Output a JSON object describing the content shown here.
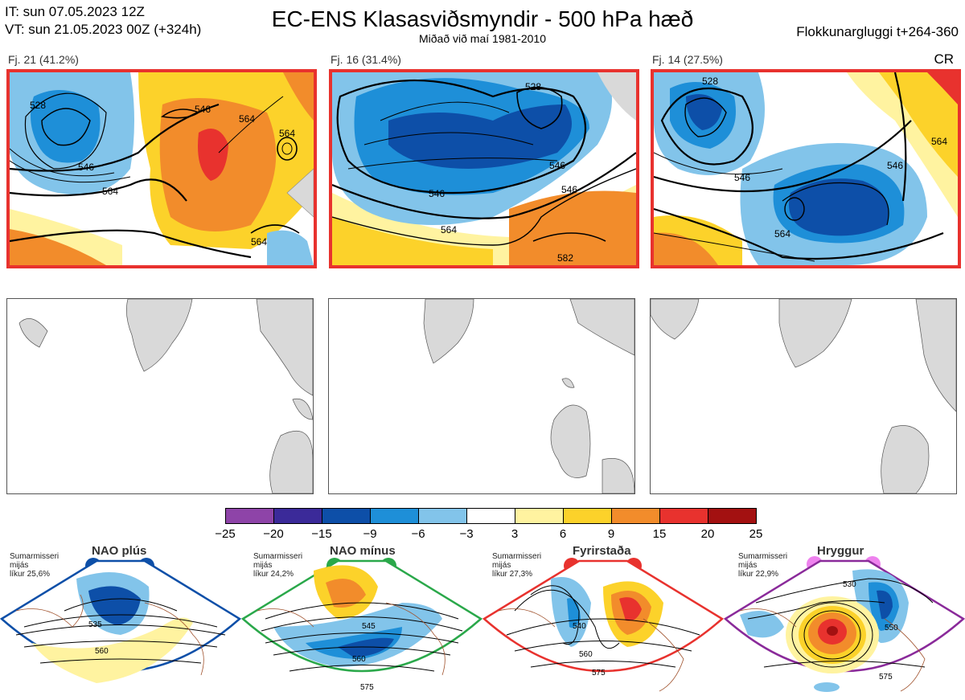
{
  "header": {
    "it_line": "IT: sun 07.05.2023 12Z",
    "vt_line": "VT: sun 21.05.2023 00Z  (+324h)",
    "title": "EC-ENS Klasasviðsmyndir - 500 hPa hæð",
    "subtitle": "Miðað við maí 1981-2010",
    "window": "Flokkunargluggi t+264-360",
    "corner_tag": "CR"
  },
  "clusters": [
    {
      "label": "Fj. 21 (41.2%)",
      "contour_labels": [
        "528",
        "546",
        "564",
        "546",
        "564",
        "564",
        "564"
      ]
    },
    {
      "label": "Fj. 16 (31.4%)",
      "contour_labels": [
        "528",
        "546",
        "546",
        "564",
        "582",
        "546"
      ]
    },
    {
      "label": "Fj. 14 (27.5%)",
      "contour_labels": [
        "528",
        "546",
        "564",
        "564",
        "546"
      ]
    }
  ],
  "colorbar": {
    "ticks": [
      "−25",
      "−20",
      "−15",
      "−9",
      "−6",
      "−3",
      "3",
      "6",
      "9",
      "15",
      "20",
      "25"
    ],
    "colors": [
      "#8e44a8",
      "#3b2a99",
      "#0d4fa8",
      "#1e8fd8",
      "#82c4ea",
      "#ffffff",
      "#fff3a0",
      "#fcd22a",
      "#f28c2b",
      "#e8322e",
      "#a31111"
    ]
  },
  "regimes": [
    {
      "name": "NAO plús",
      "note1": "Sumarmisseri",
      "note2": "mijás",
      "note3": "líkur 25,6%",
      "color": "#0d4fa8",
      "iso": [
        "535",
        "560"
      ]
    },
    {
      "name": "NAO mínus",
      "note1": "Sumarmisseri",
      "note2": "mijás",
      "note3": "líkur 24,2%",
      "color": "#2aa84a",
      "iso": [
        "545",
        "560",
        "575"
      ]
    },
    {
      "name": "Fyrirstaða",
      "note1": "Sumarmisseri",
      "note2": "mijás",
      "note3": "líkur 27,3%",
      "color": "#e8322e",
      "iso": [
        "540",
        "560",
        "575"
      ]
    },
    {
      "name": "Hryggur",
      "note1": "Sumarmisseri",
      "note2": "mijás",
      "note3": "líkur 22,9%",
      "color": "#8a2a9a",
      "iso": [
        "530",
        "550",
        "575"
      ]
    }
  ]
}
